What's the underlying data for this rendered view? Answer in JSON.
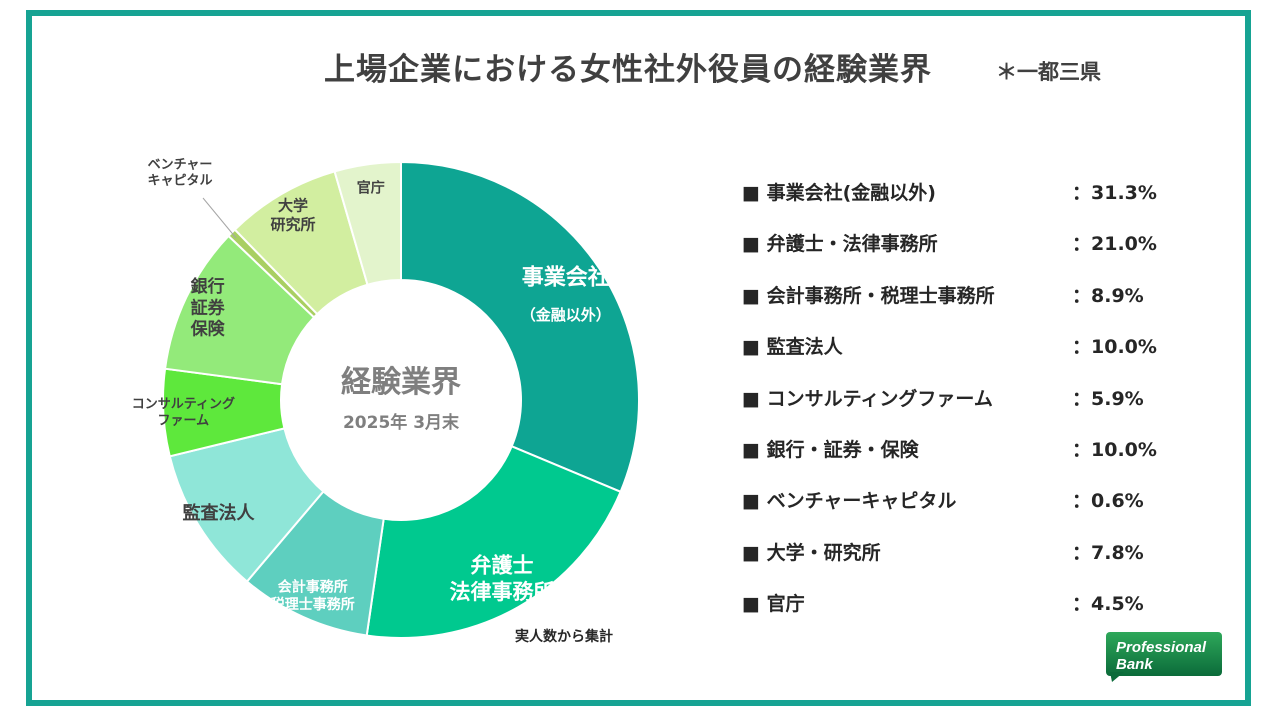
{
  "title": "上場企業における女性社外役員の経験業界",
  "scope_note": "＊一都三県",
  "center": {
    "title": "経験業界",
    "date": "2025年 3月末"
  },
  "footnote": "実人数から集計",
  "logo": {
    "line1": "Professional",
    "line2": "Bank"
  },
  "colors": {
    "frame": "#16a393"
  },
  "chart_data": {
    "type": "pie",
    "variant": "donut",
    "unit": "%",
    "slices": [
      {
        "label": "事業会社(金融以外)",
        "chart_label": [
          "事業会社",
          "（金融以外）"
        ],
        "value": 31.3,
        "color": "#0ea593"
      },
      {
        "label": "弁護士・法律事務所",
        "chart_label": [
          "弁護士",
          "法律事務所"
        ],
        "value": 21.0,
        "color": "#00c98f"
      },
      {
        "label": "会計事務所・税理士事務所",
        "chart_label": [
          "会計事務所",
          "税理士事務所"
        ],
        "value": 8.9,
        "color": "#5ecfbf"
      },
      {
        "label": "監査法人",
        "chart_label": [
          "監査法人"
        ],
        "value": 10.0,
        "color": "#8fe6d8"
      },
      {
        "label": "コンサルティングファーム",
        "chart_label": [
          "コンサルティング",
          "ファーム"
        ],
        "value": 5.9,
        "color": "#5ee83c"
      },
      {
        "label": "銀行・証券・保険",
        "chart_label": [
          "銀行",
          "証券",
          "保険"
        ],
        "value": 10.0,
        "color": "#93ea7a"
      },
      {
        "label": "ベンチャーキャピタル",
        "chart_label": [
          "ベンチャー",
          "キャピタル"
        ],
        "value": 0.6,
        "color": "#a9cf62"
      },
      {
        "label": "大学・研究所",
        "chart_label": [
          "大学",
          "研究所"
        ],
        "value": 7.8,
        "color": "#d2eea0"
      },
      {
        "label": "官庁",
        "chart_label": [
          "官庁"
        ],
        "value": 4.5,
        "color": "#e3f4cc"
      }
    ],
    "legend": [
      {
        "label": "■ 事業会社(金融以外)",
        "value": "：31.3%"
      },
      {
        "label": "■ 弁護士・法律事務所",
        "value": "：21.0%"
      },
      {
        "label": "■ 会計事務所・税理士事務所",
        "value": "：8.9%"
      },
      {
        "label": "■ 監査法人",
        "value": "：10.0%"
      },
      {
        "label": "■ コンサルティングファーム",
        "value": "：5.9%"
      },
      {
        "label": "■ 銀行・証券・保険",
        "value": "：10.0%"
      },
      {
        "label": "■ ベンチャーキャピタル",
        "value": "：0.6%"
      },
      {
        "label": "■ 大学・研究所",
        "value": "：7.8%"
      },
      {
        "label": "■ 官庁",
        "value": "：4.5%"
      }
    ],
    "legend_placement": "right"
  }
}
